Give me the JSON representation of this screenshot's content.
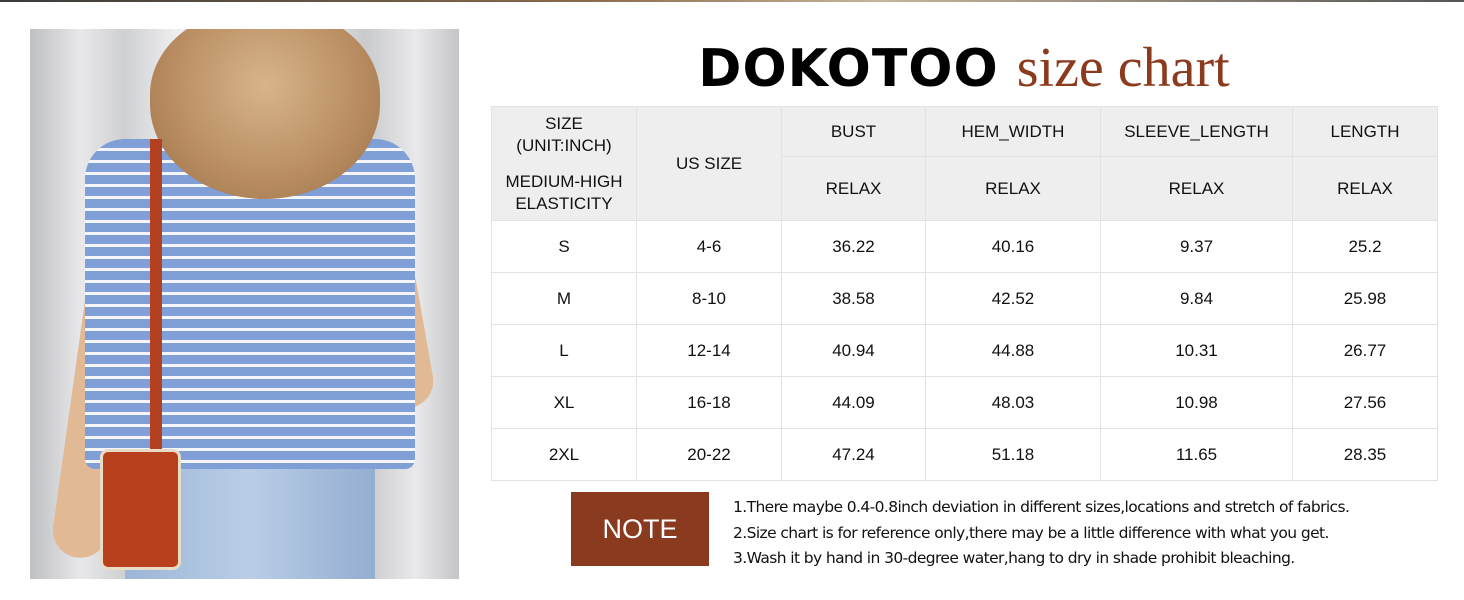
{
  "title": {
    "brand": "DOKOTOO",
    "subtitle": "size chart"
  },
  "colors": {
    "accent": "#893a1f",
    "header_bg": "#eeeeee"
  },
  "table": {
    "size_header": [
      "SIZE",
      "(UNIT:INCH)",
      "MEDIUM-HIGH",
      "ELASTICITY"
    ],
    "us_size_header": "US SIZE",
    "columns": [
      "BUST",
      "HEM_WIDTH",
      "SLEEVE_LENGTH",
      "LENGTH"
    ],
    "fit": [
      "RELAX",
      "RELAX",
      "RELAX",
      "RELAX"
    ],
    "rows": [
      [
        "S",
        "4-6",
        "36.22",
        "40.16",
        "9.37",
        "25.2"
      ],
      [
        "M",
        "8-10",
        "38.58",
        "42.52",
        "9.84",
        "25.98"
      ],
      [
        "L",
        "12-14",
        "40.94",
        "44.88",
        "10.31",
        "26.77"
      ],
      [
        "XL",
        "16-18",
        "44.09",
        "48.03",
        "10.98",
        "27.56"
      ],
      [
        "2XL",
        "20-22",
        "47.24",
        "51.18",
        "11.65",
        "28.35"
      ]
    ]
  },
  "note": {
    "label": "NOTE",
    "lines": [
      "1.There maybe 0.4-0.8inch deviation in different sizes,locations and stretch of fabrics.",
      "2.Size chart is for reference only,there may be a little difference with what you get.",
      "3.Wash it by hand in 30-degree water,hang to dry in shade prohibit bleaching."
    ]
  }
}
